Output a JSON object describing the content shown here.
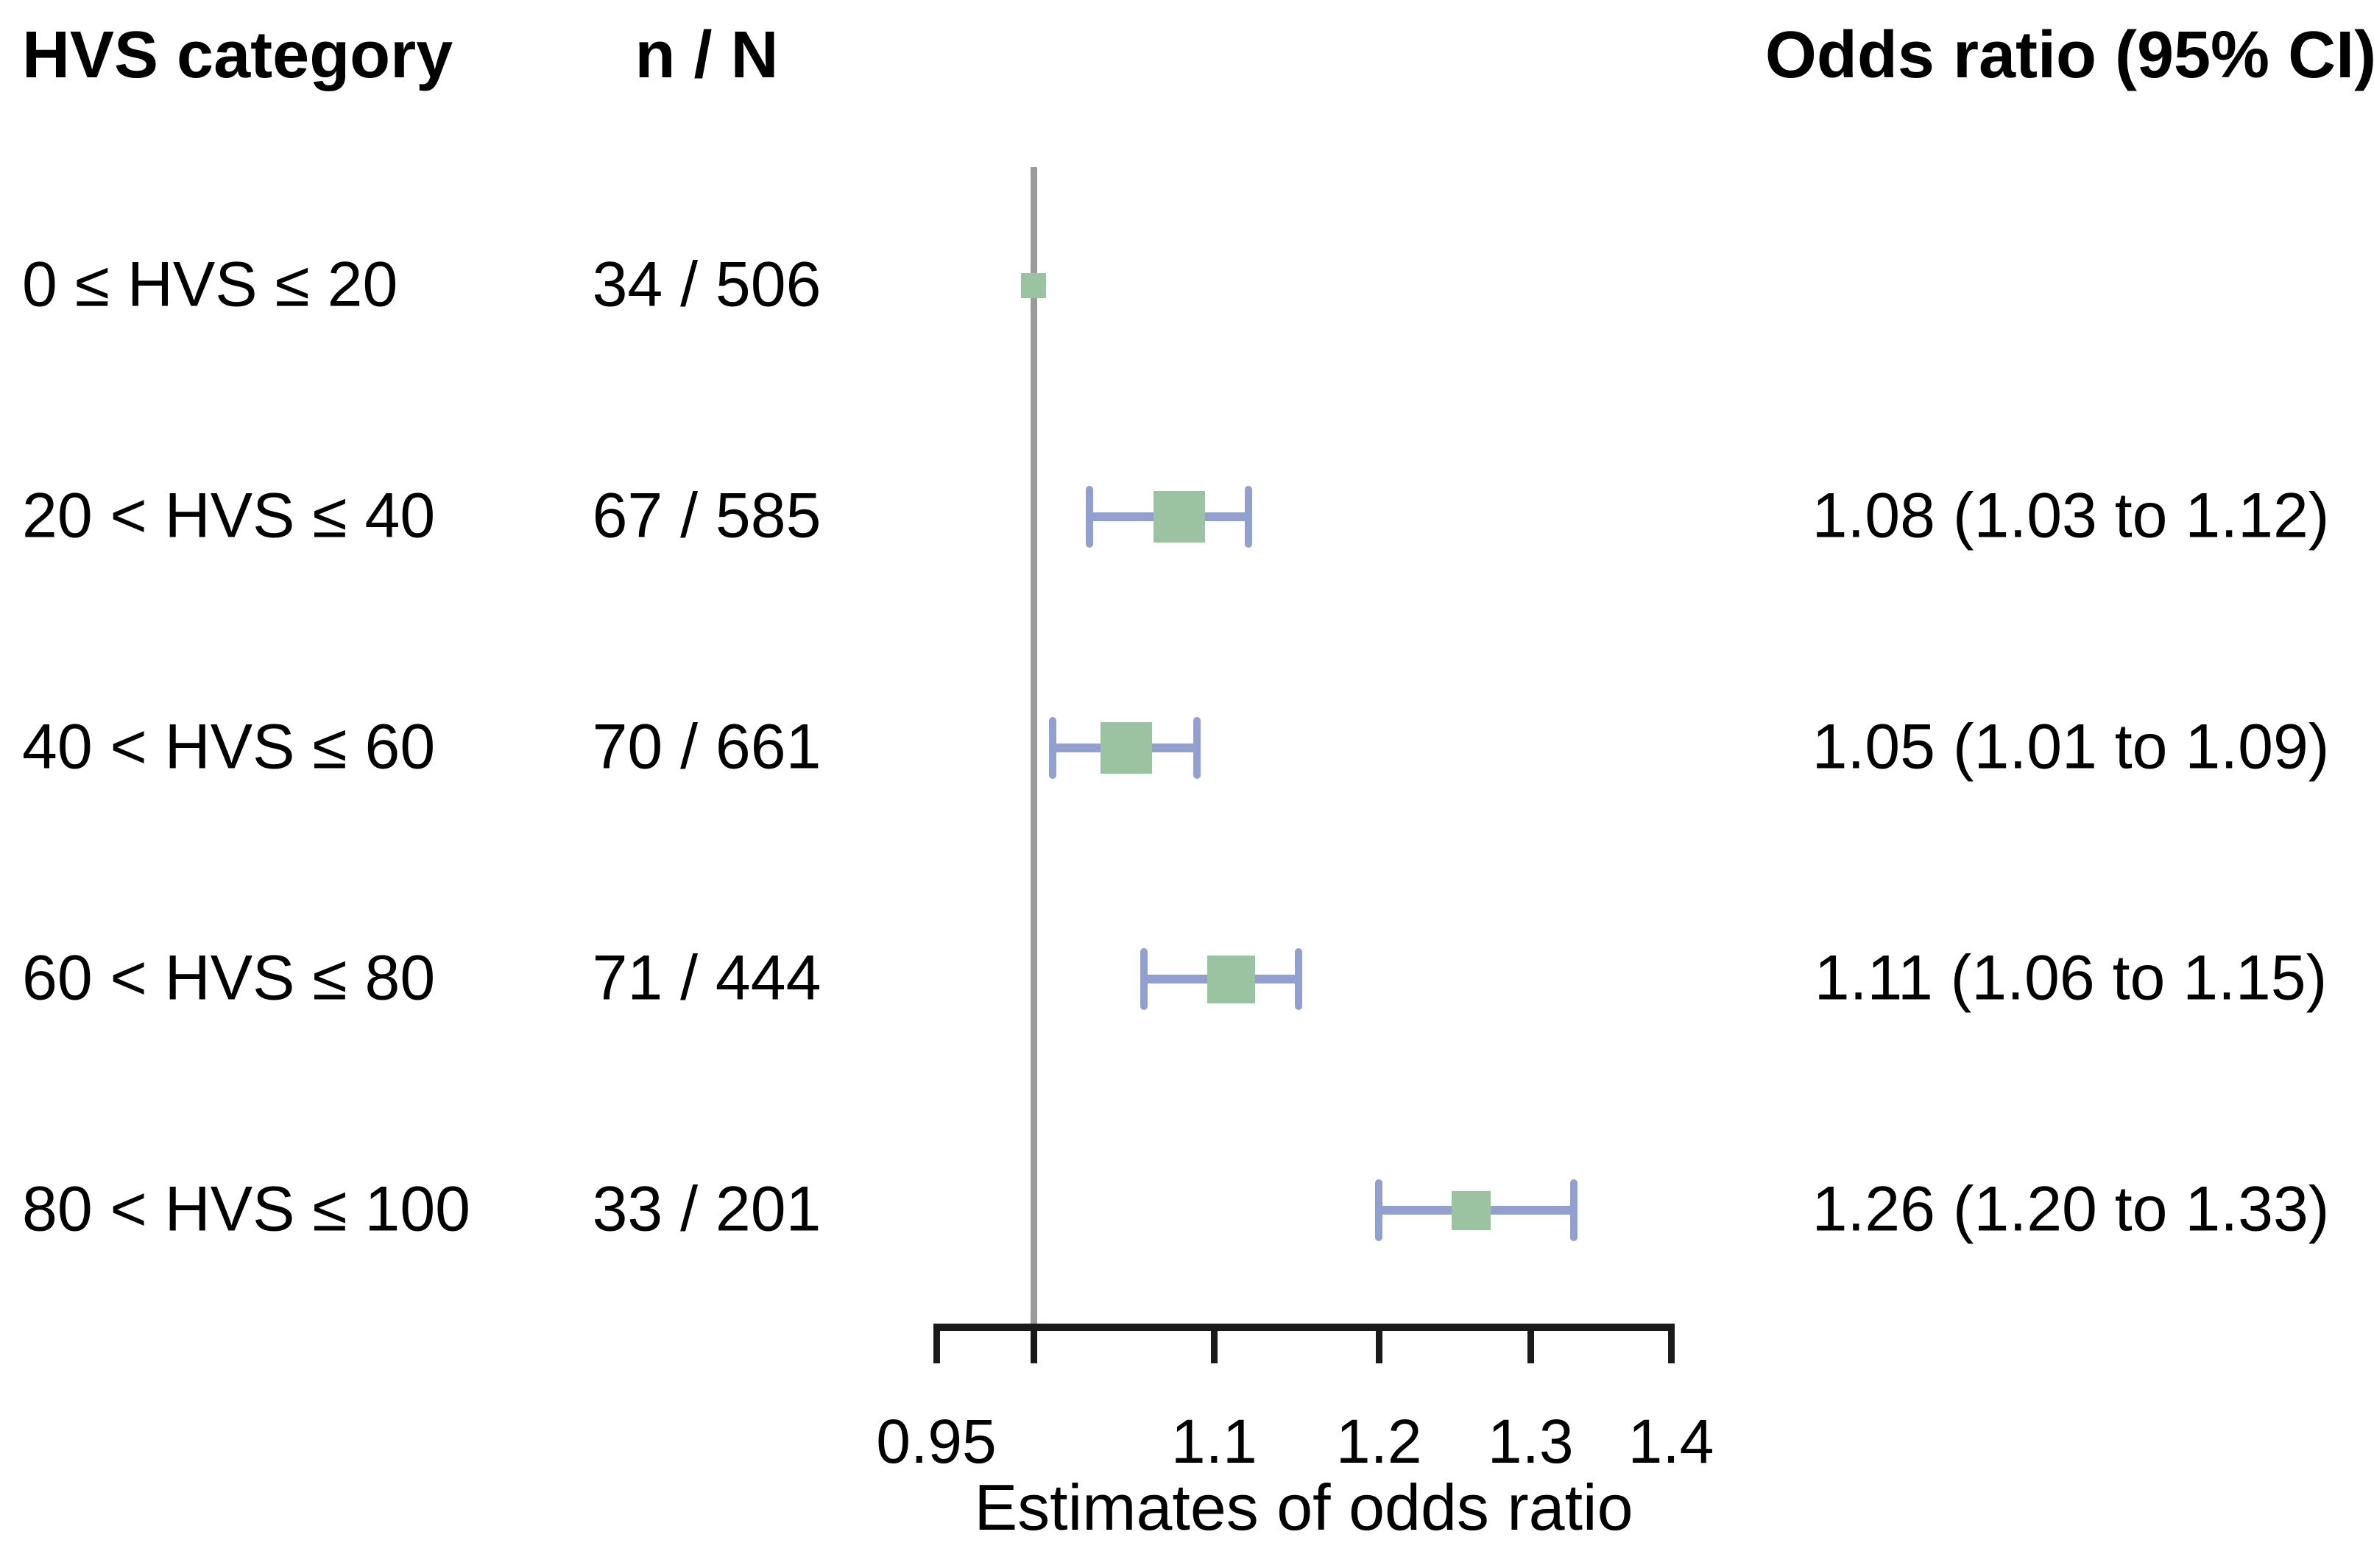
{
  "headers": {
    "hvs_category": "HVS category",
    "n_over_N": "n / N",
    "odds_ratio": "Odds ratio (95% CI)"
  },
  "chart_data": {
    "type": "forest",
    "scale": "log",
    "title": "",
    "xlabel": "Estimates of odds ratio",
    "ylabel": "",
    "x_range": [
      0.95,
      1.4
    ],
    "reference_value": 1.0,
    "grid": false,
    "legend": "none",
    "x_ticks": [
      {
        "value": 0.95,
        "label": "0.95"
      },
      {
        "value": 1.0,
        "label": ""
      },
      {
        "value": 1.1,
        "label": "1.1"
      },
      {
        "value": 1.2,
        "label": "1.2"
      },
      {
        "value": 1.3,
        "label": "1.3"
      },
      {
        "value": 1.4,
        "label": "1.4"
      }
    ],
    "rows": [
      {
        "category": "0 ≤ HVS ≤ 20",
        "n_over_N": "34 / 506",
        "or": 1.0,
        "ci_low": null,
        "ci_high": null,
        "or_text": "",
        "marker_size_px": 34
      },
      {
        "category": "20 < HVS ≤ 40",
        "n_over_N": "67 / 585",
        "or": 1.08,
        "ci_low": 1.03,
        "ci_high": 1.12,
        "or_text": "1.08 (1.03 to 1.12)",
        "marker_size_px": 70
      },
      {
        "category": "40 < HVS ≤ 60",
        "n_over_N": "70 / 661",
        "or": 1.05,
        "ci_low": 1.01,
        "ci_high": 1.09,
        "or_text": "1.05 (1.01 to 1.09)",
        "marker_size_px": 70
      },
      {
        "category": "60 < HVS ≤ 80",
        "n_over_N": "71 / 444",
        "or": 1.11,
        "ci_low": 1.06,
        "ci_high": 1.15,
        "or_text": "1.11 (1.06 to 1.15)",
        "marker_size_px": 65
      },
      {
        "category": "80 < HVS ≤ 100",
        "n_over_N": "33 / 201",
        "or": 1.26,
        "ci_low": 1.2,
        "ci_high": 1.33,
        "or_text": "1.26 (1.20 to 1.33)",
        "marker_size_px": 53
      }
    ],
    "colors": {
      "marker": "#9cc3a1",
      "ci": "#91a0d1",
      "reference_line": "#9b9b9b",
      "axis": "#1a1a1a",
      "text": "#000000"
    }
  }
}
